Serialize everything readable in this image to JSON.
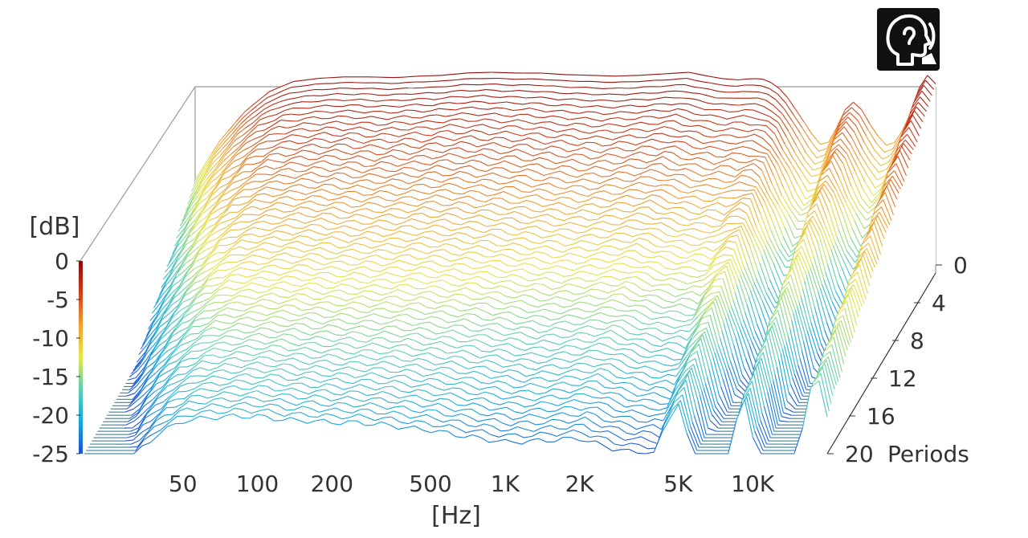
{
  "chart_data": {
    "type": "waterfall",
    "title": "",
    "xlabel": "[Hz]",
    "zlabel": "[dB]",
    "ylabel_suffix": "Periods",
    "x_ticks": [
      {
        "label": "50",
        "value": 50
      },
      {
        "label": "100",
        "value": 100
      },
      {
        "label": "200",
        "value": 200
      },
      {
        "label": "500",
        "value": 500
      },
      {
        "label": "1K",
        "value": 1000
      },
      {
        "label": "2K",
        "value": 2000
      },
      {
        "label": "5K",
        "value": 5000
      },
      {
        "label": "10K",
        "value": 10000
      }
    ],
    "xlim": [
      20,
      20000
    ],
    "x_scale": "log",
    "z_ticks": [
      {
        "label": "0",
        "value": 0
      },
      {
        "label": "-5",
        "value": -5
      },
      {
        "label": "-10",
        "value": -10
      },
      {
        "label": "-15",
        "value": -15
      },
      {
        "label": "-20",
        "value": -20
      },
      {
        "label": "-25",
        "value": -25
      }
    ],
    "zlim": [
      -25,
      0
    ],
    "y_ticks": [
      {
        "label": "0",
        "value": 0
      },
      {
        "label": "4",
        "value": 4
      },
      {
        "label": "8",
        "value": 8
      },
      {
        "label": "12",
        "value": 12
      },
      {
        "label": "16",
        "value": 16
      },
      {
        "label": "20",
        "value": 20
      }
    ],
    "ylim": [
      0,
      20
    ],
    "colormap": [
      "#1f4fd8",
      "#16a9df",
      "#5fd0b0",
      "#e6e64a",
      "#f0a030",
      "#d03a1a",
      "#8b0a0a"
    ],
    "baseline_color": "#2f7f9a",
    "response_db": [
      {
        "hz": 20,
        "db": -14
      },
      {
        "hz": 25,
        "db": -9
      },
      {
        "hz": 32,
        "db": -5
      },
      {
        "hz": 40,
        "db": -2.5
      },
      {
        "hz": 50,
        "db": -1.2
      },
      {
        "hz": 63,
        "db": -0.8
      },
      {
        "hz": 80,
        "db": -0.6
      },
      {
        "hz": 100,
        "db": -0.6
      },
      {
        "hz": 130,
        "db": -0.7
      },
      {
        "hz": 160,
        "db": -0.5
      },
      {
        "hz": 200,
        "db": -0.4
      },
      {
        "hz": 250,
        "db": -0.1
      },
      {
        "hz": 320,
        "db": 0
      },
      {
        "hz": 400,
        "db": -0.1
      },
      {
        "hz": 500,
        "db": -0.1
      },
      {
        "hz": 630,
        "db": -0.3
      },
      {
        "hz": 800,
        "db": -0.4
      },
      {
        "hz": 1000,
        "db": -0.5
      },
      {
        "hz": 1250,
        "db": -0.4
      },
      {
        "hz": 1600,
        "db": -0.2
      },
      {
        "hz": 2000,
        "db": 0
      },
      {
        "hz": 2300,
        "db": -0.4
      },
      {
        "hz": 2700,
        "db": -0.8
      },
      {
        "hz": 3150,
        "db": -1.0
      },
      {
        "hz": 3600,
        "db": -0.8
      },
      {
        "hz": 4000,
        "db": -0.9
      },
      {
        "hz": 4500,
        "db": -1.6
      },
      {
        "hz": 5000,
        "db": -3.2
      },
      {
        "hz": 5600,
        "db": -5.5
      },
      {
        "hz": 6300,
        "db": -8.0
      },
      {
        "hz": 7100,
        "db": -10.0
      },
      {
        "hz": 8000,
        "db": -7.0
      },
      {
        "hz": 9000,
        "db": -3.5
      },
      {
        "hz": 10000,
        "db": -4.8
      },
      {
        "hz": 11200,
        "db": -7.5
      },
      {
        "hz": 12500,
        "db": -9.5
      },
      {
        "hz": 14000,
        "db": -9.0
      },
      {
        "hz": 16000,
        "db": -5.0
      },
      {
        "hz": 18000,
        "db": 0
      },
      {
        "hz": 20000,
        "db": -1.5
      }
    ],
    "decay_db_per_period": [
      {
        "hz": 20,
        "rate": 0.9
      },
      {
        "hz": 50,
        "rate": 0.85
      },
      {
        "hz": 100,
        "rate": 0.85
      },
      {
        "hz": 500,
        "rate": 0.95
      },
      {
        "hz": 1000,
        "rate": 1.0
      },
      {
        "hz": 2000,
        "rate": 1.0
      },
      {
        "hz": 4000,
        "rate": 1.05
      },
      {
        "hz": 5000,
        "rate": 0.65
      },
      {
        "hz": 7100,
        "rate": 1.2
      },
      {
        "hz": 9000,
        "rate": 0.55
      },
      {
        "hz": 12500,
        "rate": 1.3
      },
      {
        "hz": 16000,
        "rate": 0.7
      },
      {
        "hz": 18000,
        "rate": 0.6
      },
      {
        "hz": 20000,
        "rate": 0.8
      }
    ]
  },
  "logo": {
    "icon": "head-ear-icon"
  }
}
